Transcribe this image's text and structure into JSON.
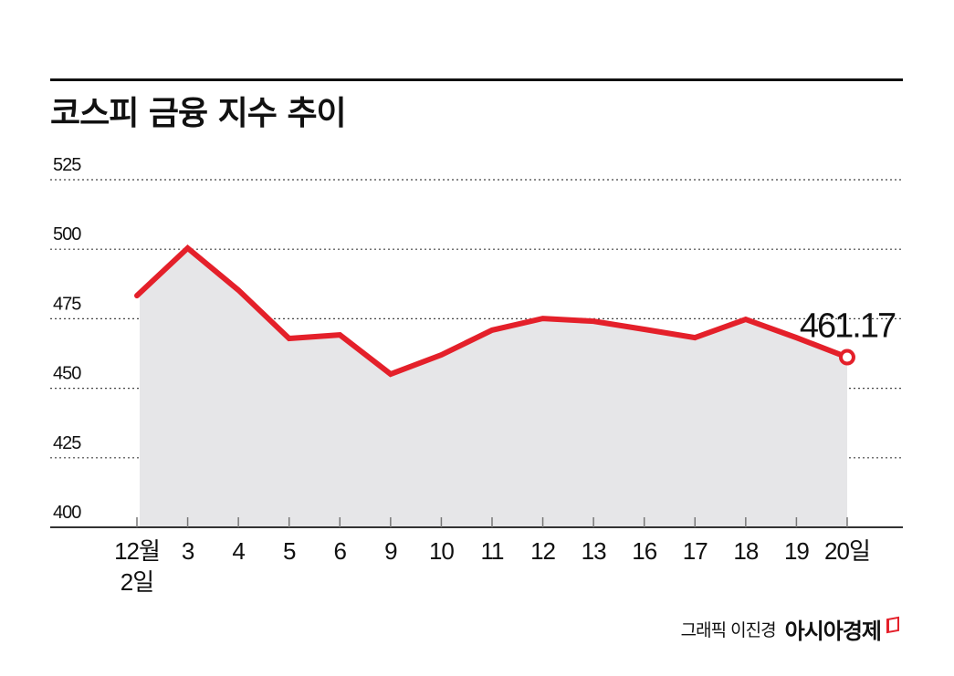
{
  "header": {
    "title": "코스피 금융 지수 추이"
  },
  "colors": {
    "line": "#e4202a",
    "area_fill": "#e6e6e8",
    "grid": "#444444",
    "axis": "#333333",
    "text": "#111111"
  },
  "callout": {
    "label": "461.17",
    "point_index": 14
  },
  "footer": {
    "credit": "그래픽 이진경",
    "brand": "아시아경제"
  },
  "chart_data": {
    "type": "area",
    "title": "코스피 금융 지수 추이",
    "xlabel": "",
    "ylabel": "",
    "ylim": [
      400,
      525
    ],
    "yticks": [
      400,
      425,
      450,
      475,
      500,
      525
    ],
    "grid": true,
    "categories": [
      "12월 2일",
      "3",
      "4",
      "5",
      "6",
      "9",
      "10",
      "11",
      "12",
      "13",
      "16",
      "17",
      "18",
      "19",
      "20일"
    ],
    "x_tick_labels": [
      [
        "12월",
        "2일"
      ],
      [
        "3"
      ],
      [
        "4"
      ],
      [
        "5"
      ],
      [
        "6"
      ],
      [
        "9"
      ],
      [
        "10"
      ],
      [
        "11"
      ],
      [
        "12"
      ],
      [
        "13"
      ],
      [
        "16"
      ],
      [
        "17"
      ],
      [
        "18"
      ],
      [
        "19"
      ],
      [
        "20일"
      ]
    ],
    "series": [
      {
        "name": "코스피 금융 지수",
        "values": [
          483.3,
          500.4,
          485.3,
          467.9,
          469.2,
          455.1,
          462.0,
          470.9,
          475.1,
          474.1,
          471.2,
          468.2,
          474.8,
          468.2,
          461.17
        ]
      }
    ],
    "annotations": [
      {
        "index": 14,
        "text": "461.17"
      }
    ]
  }
}
